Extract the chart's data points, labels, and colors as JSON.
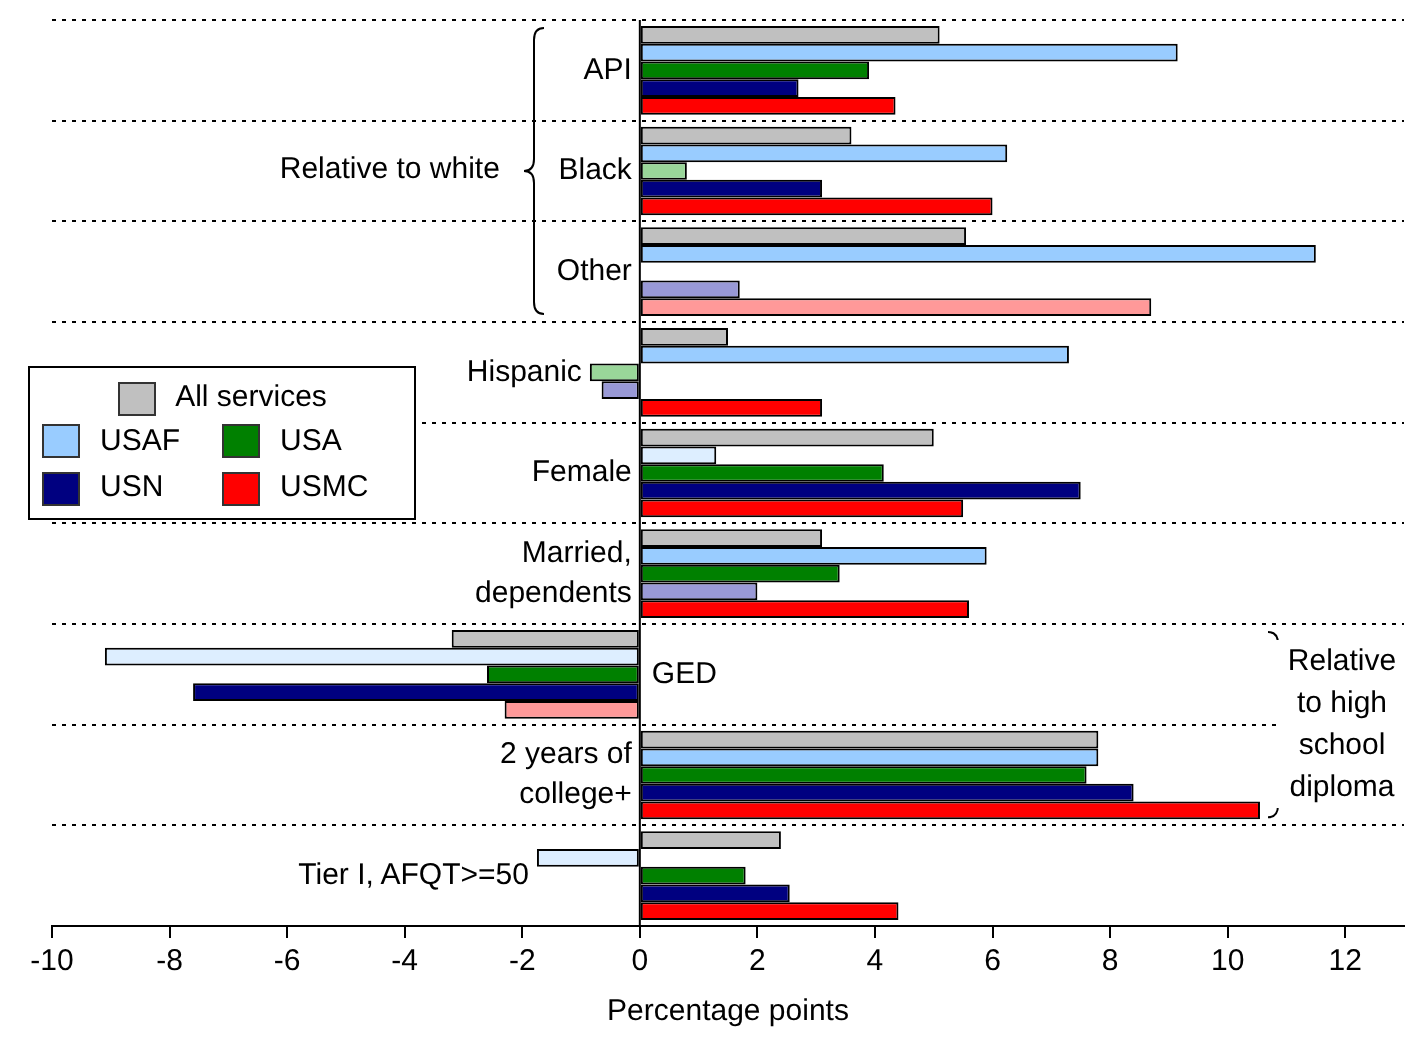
{
  "chart_data": {
    "type": "bar",
    "orientation": "horizontal",
    "xlabel": "Percentage points",
    "categories": [
      "API",
      "Black",
      "Other",
      "Hispanic",
      "Female",
      "Married, dependents",
      "GED",
      "2 years of college+",
      "Tier I, AFQT>=50"
    ],
    "series": [
      {
        "name": "All services",
        "color": "#c0c0c0",
        "values": [
          5.1,
          3.6,
          5.55,
          1.5,
          5.0,
          3.1,
          -3.2,
          7.8,
          2.4
        ]
      },
      {
        "name": "USAF",
        "color": "#99ccff",
        "colors": [
          "#99ccff",
          "#99ccff",
          "#99ccff",
          "#99ccff",
          "#ddeeff",
          "#99ccff",
          "#ddeeff",
          "#99ccff",
          "#ddeeff"
        ],
        "values": [
          9.15,
          6.25,
          11.5,
          7.3,
          1.3,
          5.9,
          -9.1,
          7.8,
          -1.75
        ]
      },
      {
        "name": "USA",
        "color": "#008000",
        "colors": [
          "#008000",
          "#99d699",
          "#008000",
          "#99d699",
          "#008000",
          "#008000",
          "#008000",
          "#008000",
          "#008000"
        ],
        "values": [
          3.9,
          0.8,
          null,
          -0.85,
          4.15,
          3.4,
          -2.6,
          7.6,
          1.8
        ]
      },
      {
        "name": "USN",
        "color": "#000080",
        "colors": [
          "#000080",
          "#000080",
          "#9999d6",
          "#9999d6",
          "#000080",
          "#9999d6",
          "#000080",
          "#000080",
          "#000080"
        ],
        "values": [
          2.7,
          3.1,
          1.7,
          -0.65,
          7.5,
          2.0,
          -7.6,
          8.4,
          2.55
        ]
      },
      {
        "name": "USMC",
        "color": "#ff0000",
        "colors": [
          "#ff0000",
          "#ff0000",
          "#ff9999",
          "#ff0000",
          "#ff0000",
          "#ff0000",
          "#ff9999",
          "#ff0000",
          "#ff0000"
        ],
        "values": [
          4.35,
          6.0,
          8.7,
          3.1,
          5.5,
          5.6,
          -2.3,
          10.55,
          4.4
        ]
      }
    ],
    "xlim": [
      -10,
      13
    ],
    "xticks": [
      -10,
      -8,
      -6,
      -4,
      -2,
      0,
      2,
      4,
      6,
      8,
      10,
      12
    ],
    "grid": "y",
    "legend": "top left",
    "annotations": [
      "Relative to white",
      "Relative to high school diploma"
    ]
  }
}
